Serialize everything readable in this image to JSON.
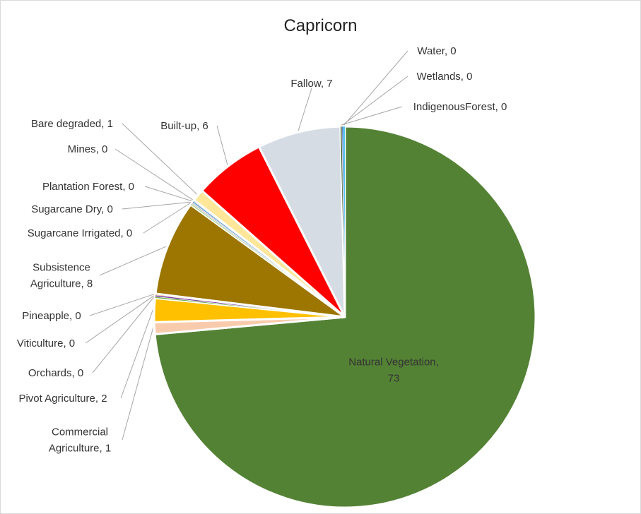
{
  "chart_data": {
    "type": "pie",
    "title": "Capricorn",
    "slices": [
      {
        "label": "Natural Vegetation",
        "value": 73,
        "color": "#548235"
      },
      {
        "label": "Commercial Agriculture",
        "value": 1,
        "color": "#f8cbad"
      },
      {
        "label": "Pivot  Agriculture",
        "value": 2,
        "color": "#ffc000"
      },
      {
        "label": "Orchards",
        "value": 0,
        "color": "#70ad47"
      },
      {
        "label": "Viticulture",
        "value": 0,
        "color": "#7030a0"
      },
      {
        "label": "Pineapple",
        "value": 0,
        "color": "#c55a11"
      },
      {
        "label": "Subsistence Agriculture",
        "value": 8,
        "color": "#9c7600"
      },
      {
        "label": "Sugarcane Irrigated",
        "value": 0,
        "color": "#a9d18e"
      },
      {
        "label": "Sugarcane Dry",
        "value": 0,
        "color": "#c9c9c9"
      },
      {
        "label": "Plantation Forest",
        "value": 0,
        "color": "#5b9bd5"
      },
      {
        "label": "Mines",
        "value": 0,
        "color": "#7f7f7f"
      },
      {
        "label": "Bare degraded",
        "value": 1,
        "color": "#ffe699"
      },
      {
        "label": "Built-up",
        "value": 6,
        "color": "#ff0000"
      },
      {
        "label": "Fallow",
        "value": 7,
        "color": "#d6dce4"
      },
      {
        "label": "IndigenousForest",
        "value": 0,
        "color": "#375623"
      },
      {
        "label": "Wetlands",
        "value": 0,
        "color": "#4472c4"
      },
      {
        "label": "Water",
        "value": 0,
        "color": "#00b0f0"
      }
    ],
    "data_labels": [
      {
        "slice": "Natural Vegetation",
        "lines": [
          "Natural Vegetation,",
          "73"
        ]
      },
      {
        "slice": "Commercial Agriculture",
        "lines": [
          "Commercial",
          "Agriculture, 1"
        ]
      },
      {
        "slice": "Pivot  Agriculture",
        "lines": [
          "Pivot  Agriculture, 2"
        ]
      },
      {
        "slice": "Orchards",
        "lines": [
          "Orchards, 0"
        ]
      },
      {
        "slice": "Viticulture",
        "lines": [
          "Viticulture, 0"
        ]
      },
      {
        "slice": "Pineapple",
        "lines": [
          "Pineapple, 0"
        ]
      },
      {
        "slice": "Subsistence Agriculture",
        "lines": [
          "Subsistence",
          "Agriculture, 8"
        ]
      },
      {
        "slice": "Sugarcane Irrigated",
        "lines": [
          "Sugarcane Irrigated, 0"
        ]
      },
      {
        "slice": "Sugarcane Dry",
        "lines": [
          "Sugarcane Dry, 0"
        ]
      },
      {
        "slice": "Plantation Forest",
        "lines": [
          "Plantation Forest, 0"
        ]
      },
      {
        "slice": "Mines",
        "lines": [
          "Mines, 0"
        ]
      },
      {
        "slice": "Bare degraded",
        "lines": [
          "Bare degraded, 1"
        ]
      },
      {
        "slice": "Built-up",
        "lines": [
          "Built-up, 6"
        ]
      },
      {
        "slice": "Fallow",
        "lines": [
          "Fallow, 7"
        ]
      },
      {
        "slice": "IndigenousForest",
        "lines": [
          "IndigenousForest, 0"
        ]
      },
      {
        "slice": "Wetlands",
        "lines": [
          "Wetlands, 0"
        ]
      },
      {
        "slice": "Water",
        "lines": [
          "Water, 0"
        ]
      }
    ],
    "legend": "none"
  }
}
